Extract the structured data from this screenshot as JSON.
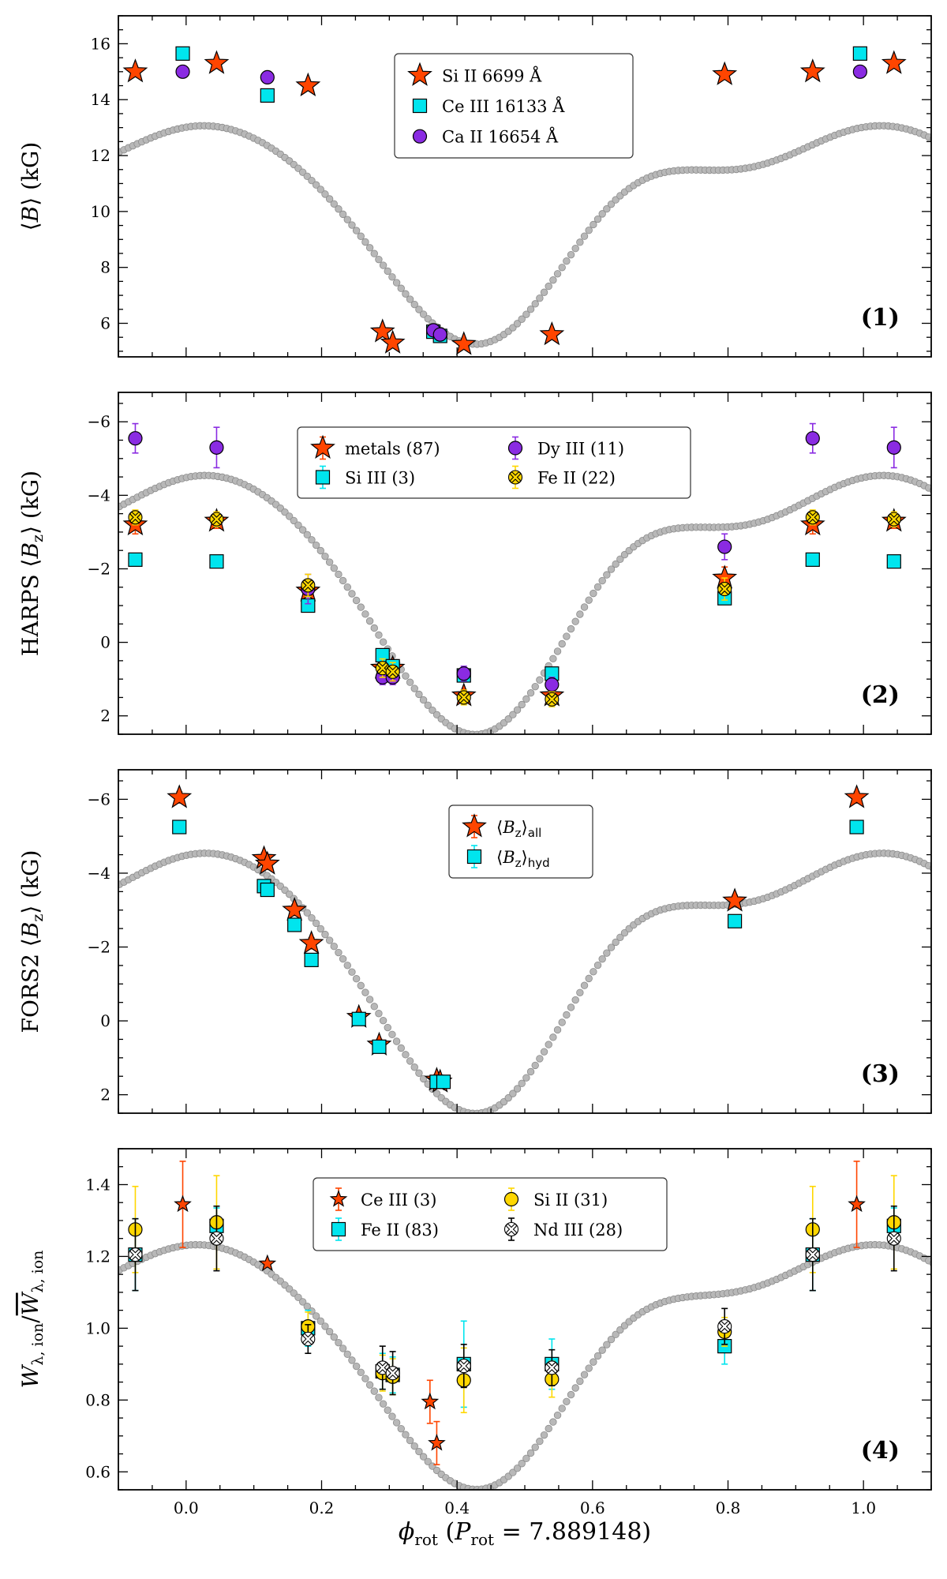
{
  "figure": {
    "xlabel": "ϕ_rot (P_rot = 7.889148)",
    "xlabel_parts": {
      "main": "ϕ",
      "sub": "rot",
      "open": " (",
      "p": "P",
      "psub": "rot",
      "rest": " = 7.889148)"
    },
    "xlim": [
      -0.1,
      1.1
    ],
    "xticks": [
      0.0,
      0.2,
      0.4,
      0.6,
      0.8,
      1.0
    ],
    "xtick_labels": [
      "0.0",
      "0.2",
      "0.4",
      "0.6",
      "0.8",
      "1.0"
    ]
  },
  "chart_data": [
    {
      "type": "scatter",
      "panel_tag": "(1)",
      "ylabel": "⟨B⟩ (kG)",
      "ylabel_parts": {
        "pre": "⟨",
        "main": "B",
        "sub": "",
        "post": "⟩ (kG)"
      },
      "ylim": [
        4.8,
        17.0
      ],
      "yinvert": false,
      "yticks": [
        6,
        8,
        10,
        12,
        14,
        16
      ],
      "ytick_labels": [
        "6",
        "8",
        "10",
        "12",
        "14",
        "16"
      ],
      "model": {
        "c": 10.03,
        "a1": 3.37,
        "p1": -0.06,
        "a2": 1.27,
        "p2": 0.15,
        "a3": 0.3,
        "p3": 0.3
      },
      "legend": {
        "position": "top-center",
        "columns": 1
      },
      "series": [
        {
          "name": "Si II 6699 Å",
          "marker": "star",
          "color": "#ff4500",
          "errcolor": "#ff4500",
          "points": [
            [
              -0.075,
              15.0
            ],
            [
              0.045,
              15.3
            ],
            [
              0.18,
              14.5
            ],
            [
              0.29,
              5.7
            ],
            [
              0.305,
              5.3
            ],
            [
              0.41,
              5.25
            ],
            [
              0.54,
              5.6
            ],
            [
              0.795,
              14.9
            ],
            [
              0.925,
              15.0
            ],
            [
              1.045,
              15.3
            ]
          ]
        },
        {
          "name": "Ce III 16133 Å",
          "marker": "square",
          "color": "#00e5ee",
          "errcolor": "#00e5ee",
          "points": [
            [
              -0.005,
              15.65
            ],
            [
              0.12,
              14.15
            ],
            [
              0.365,
              5.7
            ],
            [
              0.375,
              5.55
            ],
            [
              0.995,
              15.65
            ]
          ]
        },
        {
          "name": "Ca II 16654 Å",
          "marker": "circle",
          "color": "#8a2be2",
          "errcolor": "#8a2be2",
          "points": [
            [
              -0.005,
              15.0
            ],
            [
              0.12,
              14.8
            ],
            [
              0.365,
              5.75
            ],
            [
              0.375,
              5.6
            ],
            [
              0.995,
              15.0
            ]
          ]
        }
      ]
    },
    {
      "type": "scatter",
      "panel_tag": "(2)",
      "ylabel": "HARPS ⟨Bz⟩ (kG)",
      "ylabel_parts": {
        "pre": "HARPS ⟨",
        "main": "B",
        "sub": "z",
        "post": "⟩ (kG)"
      },
      "ylim": [
        -6.8,
        2.5
      ],
      "yinvert": true,
      "yticks": [
        -6,
        -4,
        -2,
        0,
        2
      ],
      "ytick_labels": [
        "−6",
        "−4",
        "−2",
        "0",
        "2"
      ],
      "model": {
        "c": -1.8,
        "a1": -3.05,
        "p1": -0.06,
        "a2": -1.15,
        "p2": 0.15,
        "a3": -0.25,
        "p3": 0.3
      },
      "legend": {
        "position": "top-center",
        "columns": 2
      },
      "series": [
        {
          "name": "metals (87)",
          "marker": "star",
          "color": "#ff4500",
          "errcolor": "#ff4500",
          "points": [
            [
              -0.075,
              -3.2,
              0.25
            ],
            [
              0.045,
              -3.3,
              0.2
            ],
            [
              0.18,
              -1.4,
              0.3
            ],
            [
              0.29,
              0.7,
              0.2
            ],
            [
              0.305,
              0.7,
              0.2
            ],
            [
              0.41,
              1.45,
              0.15
            ],
            [
              0.54,
              1.45,
              0.2
            ],
            [
              0.795,
              -1.75,
              0.3
            ],
            [
              0.925,
              -3.2,
              0.25
            ],
            [
              1.045,
              -3.3,
              0.2
            ]
          ]
        },
        {
          "name": "Si III (3)",
          "marker": "square",
          "color": "#00e5ee",
          "errcolor": "#00e5ee",
          "points": [
            [
              -0.075,
              -2.25,
              0.15
            ],
            [
              0.045,
              -2.2,
              0.15
            ],
            [
              0.18,
              -1.0,
              0.15
            ],
            [
              0.29,
              0.35,
              0.15
            ],
            [
              0.305,
              0.65,
              0.15
            ],
            [
              0.41,
              0.9,
              0.15
            ],
            [
              0.54,
              0.85,
              0.15
            ],
            [
              0.795,
              -1.2,
              0.15
            ],
            [
              0.925,
              -2.25,
              0.15
            ],
            [
              1.045,
              -2.2,
              0.15
            ]
          ]
        },
        {
          "name": "Dy III (11)",
          "marker": "circle",
          "color": "#8a2be2",
          "errcolor": "#8a2be2",
          "points": [
            [
              -0.075,
              -5.55,
              0.4
            ],
            [
              0.045,
              -5.3,
              0.55
            ],
            [
              0.18,
              -1.45,
              0.4
            ],
            [
              0.29,
              0.95,
              0.2
            ],
            [
              0.305,
              0.95,
              0.2
            ],
            [
              0.41,
              0.85,
              0.2
            ],
            [
              0.54,
              1.15,
              0.2
            ],
            [
              0.795,
              -2.6,
              0.35
            ],
            [
              0.925,
              -5.55,
              0.4
            ],
            [
              1.045,
              -5.3,
              0.55
            ]
          ]
        },
        {
          "name": "Fe II (22)",
          "marker": "xcircle",
          "color": "#ffd700",
          "errcolor": "#ffd700",
          "points": [
            [
              -0.075,
              -3.4,
              0.2
            ],
            [
              0.045,
              -3.35,
              0.2
            ],
            [
              0.18,
              -1.55,
              0.3
            ],
            [
              0.29,
              0.7,
              0.25
            ],
            [
              0.305,
              0.8,
              0.25
            ],
            [
              0.41,
              1.5,
              0.2
            ],
            [
              0.54,
              1.55,
              0.2
            ],
            [
              0.795,
              -1.45,
              0.3
            ],
            [
              0.925,
              -3.4,
              0.2
            ],
            [
              1.045,
              -3.35,
              0.2
            ]
          ]
        }
      ]
    },
    {
      "type": "scatter",
      "panel_tag": "(3)",
      "ylabel": "FORS2 ⟨Bz⟩ (kG)",
      "ylabel_parts": {
        "pre": "FORS2 ⟨",
        "main": "B",
        "sub": "z",
        "post": "⟩ (kG)"
      },
      "ylim": [
        -6.8,
        2.5
      ],
      "yinvert": true,
      "yticks": [
        -6,
        -4,
        -2,
        0,
        2
      ],
      "ytick_labels": [
        "−6",
        "−4",
        "−2",
        "0",
        "2"
      ],
      "model": {
        "c": -1.8,
        "a1": -3.05,
        "p1": -0.06,
        "a2": -1.15,
        "p2": 0.15,
        "a3": -0.25,
        "p3": 0.3
      },
      "legend": {
        "position": "top-center",
        "columns": 1
      },
      "series": [
        {
          "name": "⟨Bz⟩all",
          "name_parts": {
            "pre": "⟨",
            "main": "B",
            "sub": "z",
            "post": "⟩",
            "post_sub": "all"
          },
          "marker": "star",
          "color": "#ff4500",
          "errcolor": "#ff4500",
          "points": [
            [
              -0.01,
              -6.05,
              0.15
            ],
            [
              0.115,
              -4.4,
              0.15
            ],
            [
              0.12,
              -4.25,
              0.15
            ],
            [
              0.16,
              -3.0,
              0.15
            ],
            [
              0.185,
              -2.1,
              0.15
            ],
            [
              0.255,
              -0.1,
              0.15
            ],
            [
              0.285,
              0.65,
              0.15
            ],
            [
              0.37,
              1.6,
              0.15
            ],
            [
              0.375,
              1.65,
              0.15
            ],
            [
              0.81,
              -3.25,
              0.15
            ],
            [
              0.99,
              -6.05,
              0.15
            ]
          ]
        },
        {
          "name": "⟨Bz⟩hyd",
          "name_parts": {
            "pre": "⟨",
            "main": "B",
            "sub": "z",
            "post": "⟩",
            "post_sub": "hyd"
          },
          "marker": "square",
          "color": "#00e5ee",
          "errcolor": "#00e5ee",
          "points": [
            [
              -0.01,
              -5.25,
              0.15
            ],
            [
              0.115,
              -3.65,
              0.15
            ],
            [
              0.12,
              -3.55,
              0.15
            ],
            [
              0.16,
              -2.6,
              0.15
            ],
            [
              0.185,
              -1.65,
              0.15
            ],
            [
              0.255,
              -0.05,
              0.15
            ],
            [
              0.285,
              0.7,
              0.15
            ],
            [
              0.37,
              1.65,
              0.15
            ],
            [
              0.38,
              1.65,
              0.15
            ],
            [
              0.81,
              -2.7,
              0.15
            ],
            [
              0.99,
              -5.25,
              0.15
            ]
          ]
        }
      ]
    },
    {
      "type": "scatter",
      "panel_tag": "(4)",
      "ylabel": "Wλ, ion / W̄λ, ion",
      "ylabel_parts": {
        "pre": "",
        "main": "W",
        "sub": "λ, ion",
        "post": "/",
        "main2": "W",
        "sub2": "λ, ion"
      },
      "ylim": [
        0.55,
        1.5
      ],
      "yinvert": false,
      "yticks": [
        0.6,
        0.8,
        1.0,
        1.2,
        1.4
      ],
      "ytick_labels": [
        "0.6",
        "0.8",
        "1.0",
        "1.2",
        "1.4"
      ],
      "model": {
        "c": 0.9625,
        "a1": 0.3,
        "p1": -0.06,
        "a2": 0.1,
        "p2": 0.15,
        "a3": 0.025,
        "p3": 0.3
      },
      "legend": {
        "position": "top-center",
        "columns": 2
      },
      "series": [
        {
          "name": "Ce III (3)",
          "marker": "star",
          "color": "#ff4500",
          "errcolor": "#ff4500",
          "points": [
            [
              -0.005,
              1.345,
              0.12
            ],
            [
              0.12,
              1.18,
              0.0
            ],
            [
              0.36,
              0.795,
              0.06
            ],
            [
              0.37,
              0.68,
              0.06
            ],
            [
              0.99,
              1.345,
              0.12
            ]
          ]
        },
        {
          "name": "Fe II (83)",
          "marker": "square",
          "color": "#00e5ee",
          "errcolor": "#00e5ee",
          "points": [
            [
              -0.075,
              1.205,
              0.1
            ],
            [
              0.045,
              1.285,
              0.05
            ],
            [
              0.18,
              1.0,
              0.05
            ],
            [
              0.29,
              0.88,
              0.05
            ],
            [
              0.305,
              0.87,
              0.05
            ],
            [
              0.41,
              0.9,
              0.12
            ],
            [
              0.54,
              0.9,
              0.07
            ],
            [
              0.795,
              0.95,
              0.05
            ],
            [
              0.925,
              1.205,
              0.1
            ],
            [
              1.045,
              1.285,
              0.05
            ]
          ]
        },
        {
          "name": "Si II (31)",
          "marker": "circle",
          "color": "#ffd700",
          "errcolor": "#ffd700",
          "points": [
            [
              -0.075,
              1.275,
              0.12
            ],
            [
              0.045,
              1.295,
              0.13
            ],
            [
              0.18,
              1.005,
              0.04
            ],
            [
              0.29,
              0.875,
              0.05
            ],
            [
              0.305,
              0.865,
              0.05
            ],
            [
              0.41,
              0.855,
              0.09
            ],
            [
              0.54,
              0.858,
              0.05
            ],
            [
              0.795,
              0.99,
              0.04
            ],
            [
              0.925,
              1.275,
              0.12
            ],
            [
              1.045,
              1.295,
              0.13
            ]
          ]
        },
        {
          "name": "Nd III (28)",
          "marker": "xcircle",
          "color": "#ffffff",
          "errcolor": "#000000",
          "points": [
            [
              -0.075,
              1.205,
              0.1
            ],
            [
              0.045,
              1.25,
              0.09
            ],
            [
              0.18,
              0.97,
              0.04
            ],
            [
              0.29,
              0.89,
              0.06
            ],
            [
              0.305,
              0.875,
              0.06
            ],
            [
              0.41,
              0.895,
              0.06
            ],
            [
              0.54,
              0.89,
              0.05
            ],
            [
              0.795,
              1.005,
              0.05
            ],
            [
              0.925,
              1.205,
              0.1
            ],
            [
              1.045,
              1.25,
              0.09
            ]
          ]
        }
      ]
    }
  ]
}
